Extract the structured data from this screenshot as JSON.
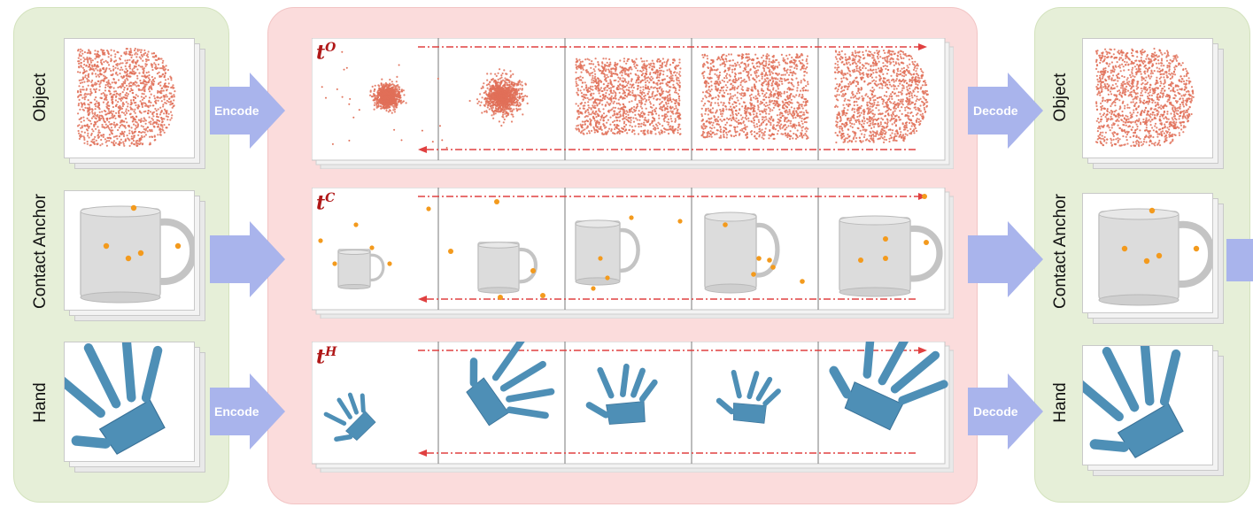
{
  "input_panel": {
    "labels": [
      "Object",
      "Contact Anchor",
      "Hand"
    ]
  },
  "output_panel": {
    "labels": [
      "Object",
      "Contact Anchor",
      "Hand"
    ]
  },
  "arrows": {
    "encode_label": "Encode",
    "decode_label": "Decode"
  },
  "timesteps": {
    "object": {
      "base": "t",
      "sup": "O"
    },
    "contact": {
      "base": "t",
      "sup": "C"
    },
    "hand": {
      "base": "t",
      "sup": "H"
    }
  },
  "colors": {
    "green_panel": "#e6efd8",
    "pink_panel": "#fbdcdc",
    "arrow": "#a9b4ec",
    "points": "#e07058",
    "anchor": "#f39a1d",
    "hand": "#4e8fb6",
    "dash": "#e04040"
  }
}
